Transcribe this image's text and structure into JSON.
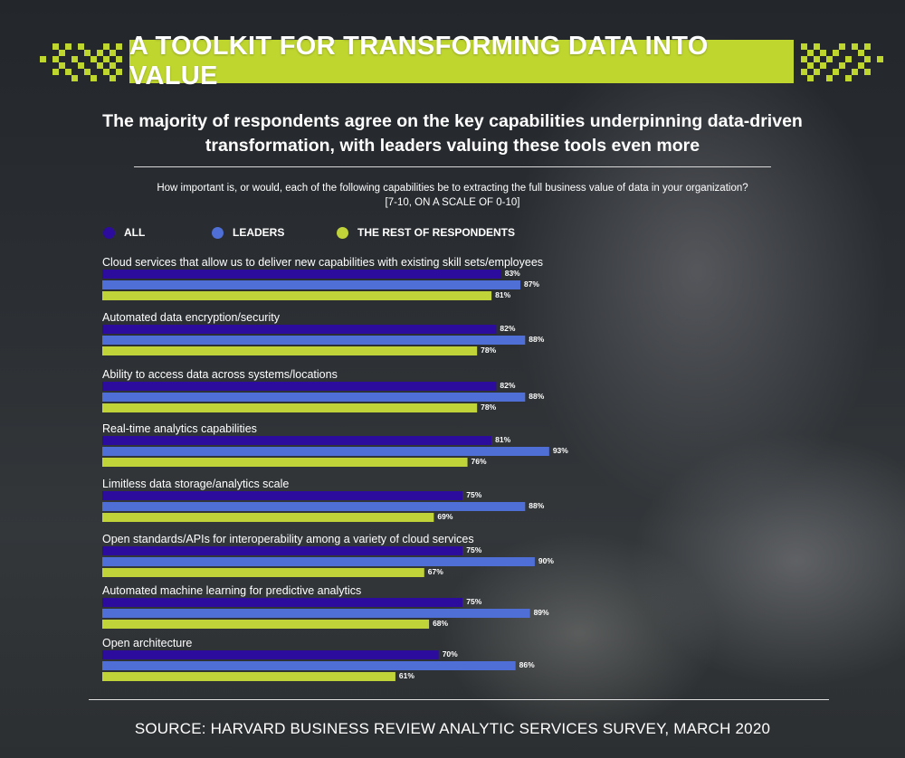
{
  "title": "A TOOLKIT FOR TRANSFORMING DATA INTO VALUE",
  "subtitle": "The majority of respondents agree on the key capabilities underpinning data-driven transformation, with leaders valuing these tools even more",
  "question_line1": "How important is, or would, each of the following capabilities be to extracting the full business value of data in your organization?",
  "question_line2": "[7-10, ON A SCALE OF 0-10]",
  "source": "SOURCE: HARVARD BUSINESS REVIEW ANALYTIC SERVICES SURVEY, MARCH 2020",
  "colors": {
    "accent": "#bfd62f",
    "all": "#2b0c9c",
    "leaders": "#4f6fd6",
    "rest": "#c0d43a"
  },
  "chart_data": {
    "type": "bar",
    "orientation": "horizontal",
    "value_suffix": "%",
    "xlim": [
      0,
      100
    ],
    "legend_placement": "top-left",
    "grid": false,
    "categories": [
      "Cloud services that allow us to deliver new capabilities with existing skill sets/employees",
      "Automated data encryption/security",
      "Ability to access data across systems/locations",
      "Real-time analytics capabilities",
      "Limitless data storage/analytics scale",
      "Open standards/APIs for interoperability among a variety of cloud services",
      "Automated machine learning for predictive analytics",
      "Open architecture"
    ],
    "series": [
      {
        "name": "ALL",
        "color": "#2b0c9c",
        "values": [
          83,
          82,
          82,
          81,
          75,
          75,
          75,
          70
        ]
      },
      {
        "name": "LEADERS",
        "color": "#4f6fd6",
        "values": [
          87,
          88,
          88,
          93,
          88,
          90,
          89,
          86
        ]
      },
      {
        "name": "THE REST OF RESPONDENTS",
        "color": "#c0d43a",
        "values": [
          81,
          78,
          78,
          76,
          69,
          67,
          68,
          61
        ]
      }
    ]
  }
}
